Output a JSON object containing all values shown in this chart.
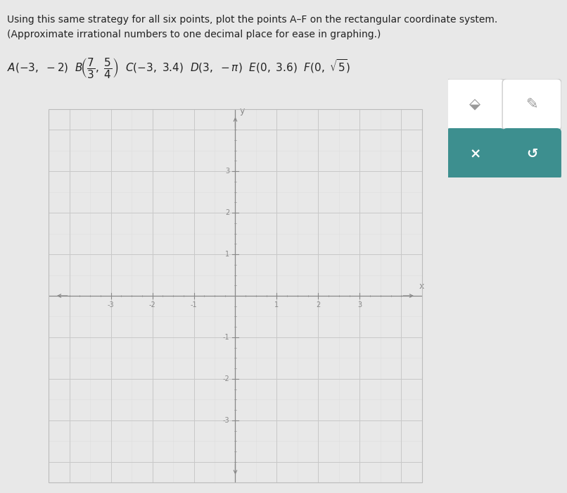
{
  "xlim": [
    -4,
    4
  ],
  "ylim": [
    -4,
    4
  ],
  "xticks": [
    -3,
    -2,
    -1,
    1,
    2,
    3
  ],
  "yticks": [
    -3,
    -2,
    -1,
    1,
    2,
    3
  ],
  "background_color": "#e8e8e8",
  "plot_bg_color": "#f7f7f7",
  "grid_major_color": "#c8c8c8",
  "grid_minor_color": "#dedede",
  "axis_color": "#888888",
  "tick_color": "#888888",
  "tick_label_color": "#888888",
  "border_color": "#bbbbbb",
  "teal_color": "#3d8f8f",
  "btn_bg_color": "#f0f0f0",
  "btn_border_color": "#cccccc",
  "line1": "Using this same strategy for all six points, plot the points A–F on the rectangular coordinate system.",
  "line2": "(Approximate irrational numbers to one decimal place for ease in graphing.)",
  "font_size_text": 10,
  "font_size_label": 11,
  "font_size_tick": 7
}
